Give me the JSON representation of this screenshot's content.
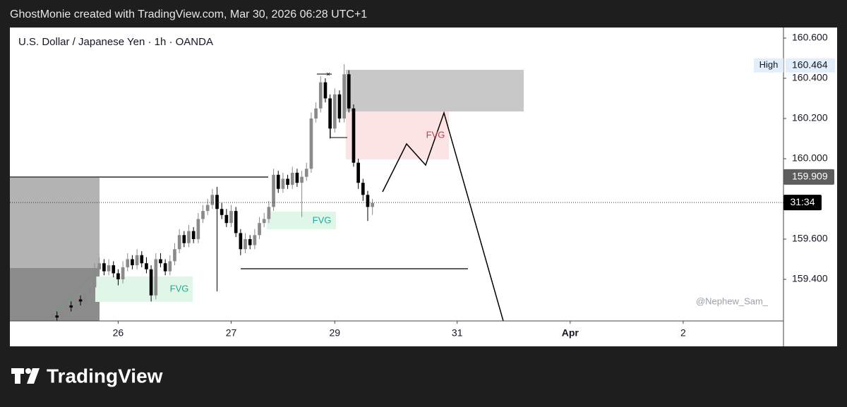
{
  "header": "GhostMonie created with TradingView.com, Mar 30, 2026 06:28 UTC+1",
  "footer_brand": "TradingView",
  "chart_data": {
    "type": "candlestick",
    "title": "U.S. Dollar / Japanese Yen · 1h · OANDA",
    "watermark": "@Nephew_Sam_",
    "annotations": [
      "FVG",
      "FVG",
      "FVG"
    ],
    "up_color": "#8a8a8a",
    "down_color": "#000000",
    "xlim": [
      0,
      164.3
    ],
    "xticks": [
      {
        "value": 23,
        "label": "26"
      },
      {
        "value": 47,
        "label": "27"
      },
      {
        "value": 69,
        "label": "29"
      },
      {
        "value": 95,
        "label": "31"
      },
      {
        "value": 119,
        "label": "Apr"
      },
      {
        "value": 143,
        "label": "2"
      }
    ],
    "ylim": [
      159.193,
      160.649
    ],
    "yticks": [
      {
        "value": 159.4,
        "label": "159.400"
      },
      {
        "value": 159.6,
        "label": "159.600"
      },
      {
        "value": 160.0,
        "label": "160.000"
      },
      {
        "value": 160.2,
        "label": "160.200"
      },
      {
        "value": 160.4,
        "label": "160.400"
      },
      {
        "value": 160.6,
        "label": "160.600"
      }
    ],
    "markers": [
      {
        "name": "High",
        "value": 160.464,
        "label": "160.464"
      },
      {
        "value": 159.909,
        "label": "159.909"
      }
    ],
    "current_price": 159.782,
    "countdown": "31:34",
    "x": [
      8,
      9,
      10,
      11,
      12,
      13,
      14,
      15,
      16,
      17,
      18,
      19,
      20,
      21,
      22,
      23,
      24,
      25,
      26,
      27,
      28,
      29,
      30,
      31,
      32,
      33,
      34,
      35,
      36,
      37,
      38,
      39,
      40,
      41,
      42,
      43,
      44,
      45,
      46,
      47,
      48,
      49,
      50,
      51,
      52,
      53,
      54,
      55,
      56,
      57,
      58,
      59,
      60,
      61,
      62,
      63,
      64,
      65,
      66,
      67,
      68,
      69,
      70,
      71,
      72,
      73,
      74,
      75,
      76,
      77
    ],
    "open": [
      159.19,
      159.2,
      159.22,
      159.21,
      159.25,
      159.27,
      159.26,
      159.3,
      159.29,
      159.33,
      159.36,
      159.45,
      159.48,
      159.44,
      159.47,
      159.43,
      159.4,
      159.46,
      159.5,
      159.47,
      159.52,
      159.48,
      159.45,
      159.32,
      159.5,
      159.48,
      159.44,
      159.49,
      159.55,
      159.62,
      159.58,
      159.64,
      159.6,
      159.7,
      159.74,
      159.77,
      159.82,
      159.75,
      159.72,
      159.68,
      159.74,
      159.63,
      159.55,
      159.6,
      159.57,
      159.62,
      159.68,
      159.7,
      159.76,
      159.92,
      159.85,
      159.9,
      159.87,
      159.93,
      159.88,
      159.91,
      159.95,
      160.2,
      160.25,
      160.38,
      160.3,
      160.15,
      160.32,
      160.2,
      160.42,
      160.25,
      159.98,
      159.88,
      159.82,
      159.76
    ],
    "high": [
      159.23,
      159.25,
      159.24,
      159.28,
      159.3,
      159.29,
      159.33,
      159.32,
      159.36,
      159.39,
      159.48,
      159.51,
      159.5,
      159.5,
      159.49,
      159.45,
      159.49,
      159.53,
      159.52,
      159.55,
      159.54,
      159.51,
      159.47,
      159.53,
      159.53,
      159.5,
      159.52,
      159.58,
      159.65,
      159.64,
      159.67,
      159.66,
      159.73,
      159.77,
      159.8,
      159.85,
      159.86,
      159.78,
      159.75,
      159.77,
      159.76,
      159.65,
      159.63,
      159.62,
      159.65,
      159.71,
      159.73,
      159.79,
      159.95,
      159.94,
      159.93,
      159.92,
      159.96,
      159.95,
      159.94,
      159.98,
      160.23,
      160.28,
      160.41,
      160.4,
      160.32,
      160.35,
      160.34,
      160.47,
      160.44,
      160.27,
      160.0,
      159.9,
      159.84,
      159.8
    ],
    "low": [
      159.17,
      159.18,
      159.19,
      159.19,
      159.23,
      159.24,
      159.24,
      159.27,
      159.27,
      159.31,
      159.34,
      159.43,
      159.42,
      159.42,
      159.41,
      159.37,
      159.38,
      159.44,
      159.45,
      159.45,
      159.46,
      159.43,
      159.29,
      159.3,
      159.46,
      159.42,
      159.42,
      159.47,
      159.53,
      159.56,
      159.56,
      159.58,
      159.58,
      159.68,
      159.72,
      159.75,
      159.34,
      159.7,
      159.66,
      159.66,
      159.61,
      159.52,
      159.53,
      159.55,
      159.55,
      159.6,
      159.66,
      159.68,
      159.74,
      159.83,
      159.83,
      159.85,
      159.85,
      159.86,
      159.71,
      159.89,
      159.93,
      160.18,
      160.23,
      160.28,
      160.1,
      160.13,
      160.18,
      160.18,
      160.23,
      159.96,
      159.85,
      159.79,
      159.69,
      159.72
    ],
    "close": [
      159.2,
      159.22,
      159.21,
      159.25,
      159.27,
      159.26,
      159.3,
      159.29,
      159.33,
      159.36,
      159.45,
      159.48,
      159.44,
      159.47,
      159.43,
      159.4,
      159.46,
      159.5,
      159.47,
      159.52,
      159.48,
      159.45,
      159.32,
      159.5,
      159.48,
      159.44,
      159.49,
      159.55,
      159.62,
      159.58,
      159.64,
      159.6,
      159.7,
      159.74,
      159.77,
      159.82,
      159.75,
      159.72,
      159.68,
      159.74,
      159.63,
      159.55,
      159.6,
      159.57,
      159.62,
      159.68,
      159.7,
      159.76,
      159.92,
      159.85,
      159.9,
      159.87,
      159.93,
      159.88,
      159.91,
      159.95,
      160.2,
      160.25,
      160.38,
      160.3,
      160.15,
      160.32,
      160.2,
      160.42,
      160.25,
      159.98,
      159.88,
      159.82,
      159.76,
      159.78
    ]
  }
}
